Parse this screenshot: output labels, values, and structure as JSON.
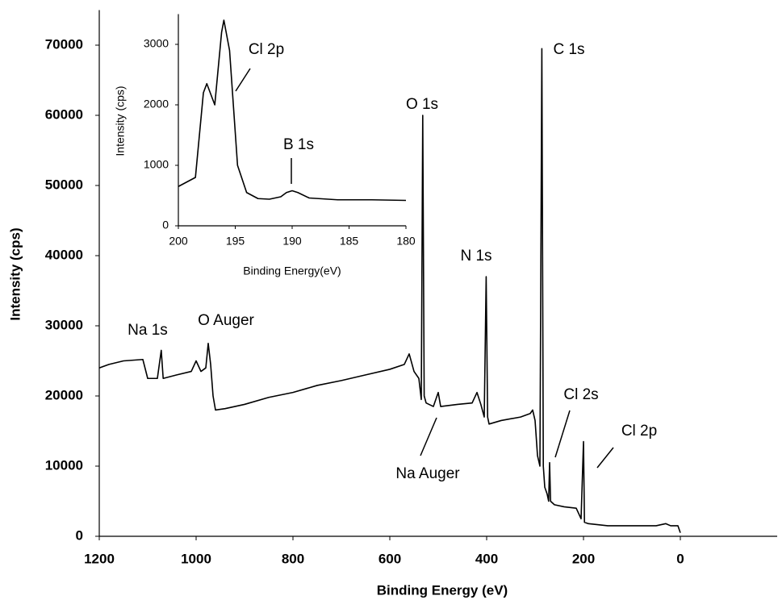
{
  "chart_data": [
    {
      "type": "line",
      "x_label": "Binding Energy (eV)",
      "y_label": "Intensity (cps)",
      "color": "#000000",
      "xlim": [
        1200,
        -200
      ],
      "ylim": [
        0,
        75000
      ],
      "xticks": [
        1200,
        1000,
        800,
        600,
        400,
        200,
        0
      ],
      "yticks": [
        0,
        10000,
        20000,
        30000,
        40000,
        50000,
        60000,
        70000
      ],
      "x": [
        1200,
        1180,
        1150,
        1110,
        1100,
        1080,
        1072,
        1068,
        1040,
        1010,
        1000,
        990,
        980,
        975,
        970,
        965,
        960,
        940,
        900,
        850,
        800,
        750,
        700,
        650,
        600,
        570,
        560,
        550,
        540,
        535,
        532,
        529,
        525,
        510,
        500,
        495,
        460,
        430,
        420,
        412,
        405,
        401,
        398,
        395,
        370,
        330,
        310,
        305,
        300,
        295,
        290,
        286,
        283,
        280,
        275,
        272,
        270,
        268,
        260,
        240,
        215,
        205,
        200,
        198,
        190,
        150,
        100,
        50,
        30,
        20,
        5,
        0
      ],
      "values": [
        24000,
        24500,
        25000,
        25200,
        22500,
        22500,
        26500,
        22500,
        23000,
        23500,
        25000,
        23500,
        24000,
        27500,
        24500,
        20000,
        18000,
        18200,
        18800,
        19800,
        20500,
        21500,
        22200,
        23000,
        23800,
        24500,
        26000,
        23500,
        22500,
        19500,
        60000,
        20000,
        19000,
        18500,
        20500,
        18500,
        18800,
        19000,
        20500,
        18800,
        17000,
        37000,
        17000,
        16000,
        16500,
        17000,
        17500,
        18000,
        16500,
        11500,
        10000,
        69500,
        10000,
        7000,
        6000,
        5000,
        10500,
        5000,
        4500,
        4200,
        4000,
        2500,
        13500,
        2000,
        1800,
        1500,
        1500,
        1500,
        1800,
        1500,
        1500,
        500
      ],
      "annotations": [
        "Na 1s",
        "O Auger",
        "O 1s",
        "N 1s",
        "C 1s",
        "Cl 2s",
        "Cl 2p",
        "Na Auger"
      ]
    },
    {
      "type": "line",
      "x_label": "Binding Energy(eV)",
      "y_label": "Intensity (cps)",
      "color": "#000000",
      "xlim": [
        200,
        180
      ],
      "ylim": [
        0,
        3500
      ],
      "xticks": [
        200,
        195,
        190,
        185,
        180
      ],
      "yticks": [
        0,
        1000,
        2000,
        3000
      ],
      "x": [
        200,
        198.5,
        197.8,
        197.5,
        197,
        196.8,
        196.2,
        196,
        195.5,
        194.8,
        194,
        193,
        192,
        191,
        190.5,
        190,
        189.5,
        188.5,
        186,
        183,
        180
      ],
      "values": [
        650,
        800,
        2200,
        2350,
        2100,
        2000,
        3200,
        3400,
        2900,
        1000,
        550,
        450,
        440,
        480,
        550,
        580,
        550,
        460,
        430,
        430,
        420
      ],
      "annotations": [
        "Cl 2p",
        "B 1s"
      ]
    }
  ]
}
